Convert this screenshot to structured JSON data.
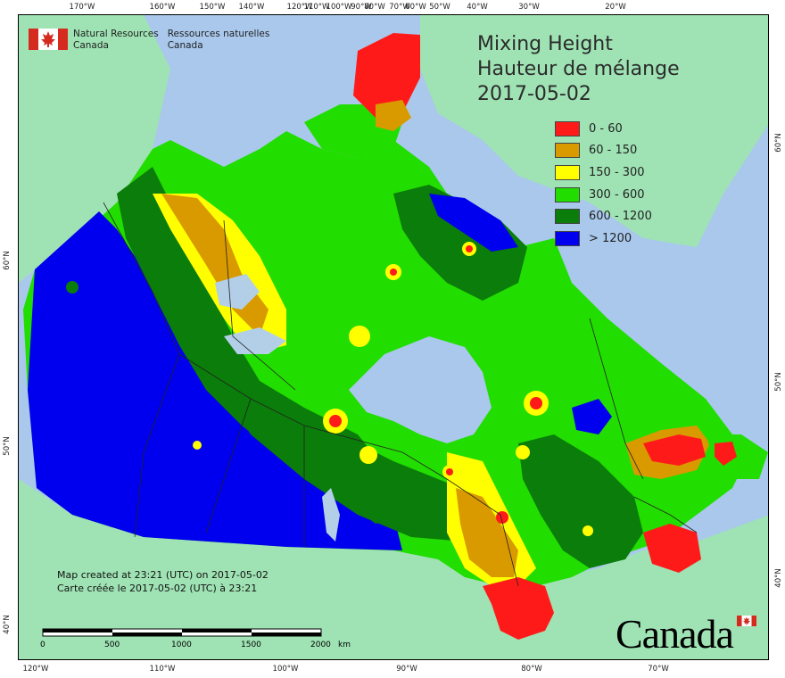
{
  "title": {
    "line1": "Mixing Height",
    "line2": "Hauteur de mélange",
    "date": "2017-05-02"
  },
  "legend": [
    {
      "label": "0 - 60",
      "color": "#ff1a1a"
    },
    {
      "label": "60 - 150",
      "color": "#d99a00"
    },
    {
      "label": "150 - 300",
      "color": "#ffff00"
    },
    {
      "label": "300 - 600",
      "color": "#22dd00"
    },
    {
      "label": "600 - 1200",
      "color": "#0a7d0a"
    },
    {
      "label": "> 1200",
      "color": "#0000ee"
    }
  ],
  "agency": {
    "en_line1": "Natural Resources",
    "en_line2": "Canada",
    "fr_line1": "Ressources naturelles",
    "fr_line2": "Canada"
  },
  "created": {
    "en": "Map created at 23:21 (UTC) on 2017-05-02",
    "fr": "Carte créée le 2017-05-02 (UTC) à 23:21"
  },
  "scale": {
    "labels": [
      "0",
      "500",
      "1000",
      "1500",
      "2000"
    ],
    "unit": "km"
  },
  "wordmark": "Canada",
  "graticule": {
    "top": [
      "170°W",
      "160°W",
      "150°W",
      "140°W",
      "120°W",
      "110°W",
      "100°W",
      "90°W",
      "80°W",
      "70°W",
      "60°W",
      "50°W",
      "40°W",
      "30°W",
      "20°W"
    ],
    "bottom": [
      "120°W",
      "110°W",
      "100°W",
      "90°W",
      "80°W",
      "70°W"
    ],
    "left": [
      "60°N",
      "50°N",
      "40°N"
    ],
    "right": [
      "60°N",
      "50°N",
      "40°N"
    ]
  },
  "colors": {
    "ocean": "#a9c8ec",
    "foreign_land": "#9fe3b4",
    "lake": "#b3cfe8"
  }
}
